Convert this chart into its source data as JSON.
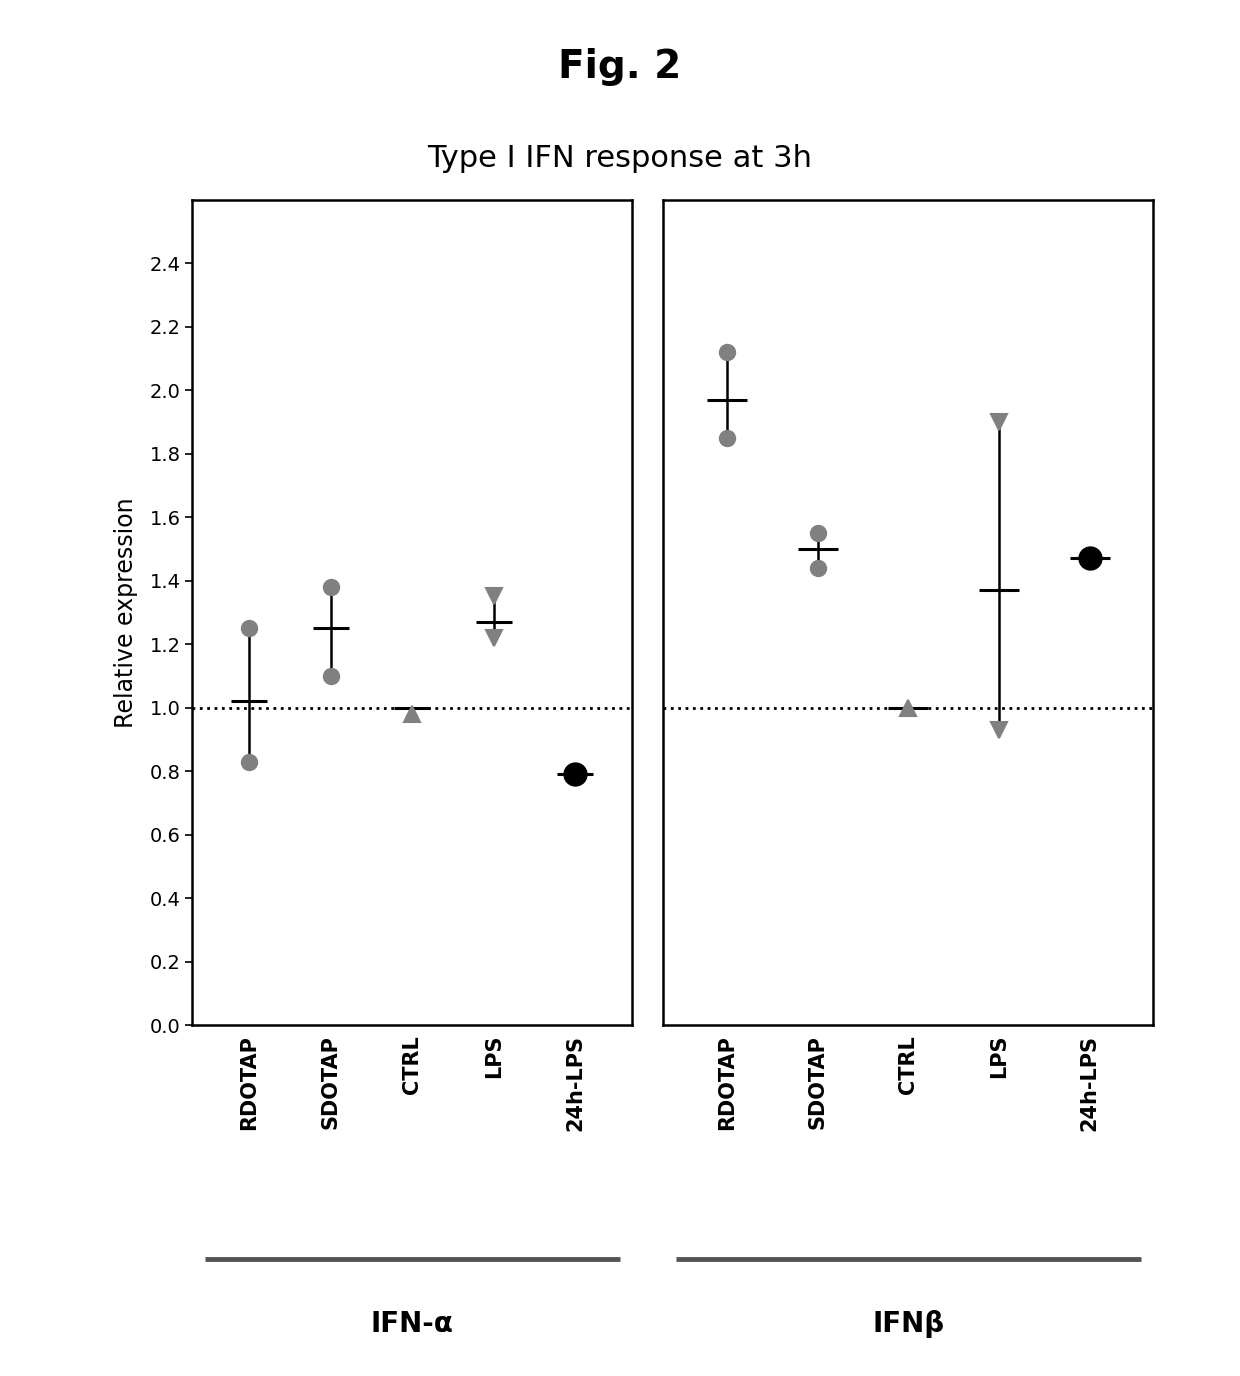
{
  "title": "Type I IFN response at 3h",
  "fig_title": "Fig. 2",
  "ylabel": "Relative expression",
  "xlabel_groups": [
    "IFN-α",
    "IFNβ"
  ],
  "categories": [
    "RDOTAP",
    "SDOTAP",
    "CTRL",
    "LPS",
    "24h-LPS"
  ],
  "ylim": [
    0.0,
    2.6
  ],
  "yticks": [
    0.0,
    0.2,
    0.4,
    0.6,
    0.8,
    1.0,
    1.2,
    1.4,
    1.6,
    1.8,
    2.0,
    2.2,
    2.4
  ],
  "dotted_line_y": 1.0,
  "ifna": {
    "RDOTAP": {
      "mean": 1.02,
      "points": [
        0.83,
        1.25
      ],
      "marker": "o",
      "color": "#808080"
    },
    "SDOTAP": {
      "mean": 1.25,
      "points": [
        1.1,
        1.38
      ],
      "marker": "o",
      "color": "#808080"
    },
    "CTRL": {
      "mean": 1.0,
      "points": [
        0.98
      ],
      "marker": "^",
      "color": "#808080"
    },
    "LPS": {
      "mean": 1.27,
      "points": [
        1.35,
        1.22
      ],
      "marker": "v",
      "color": "#808080"
    },
    "24h-LPS": {
      "mean": 0.79,
      "points": [
        0.79
      ],
      "marker": "o",
      "color": "#000000",
      "big": true
    }
  },
  "ifnb": {
    "RDOTAP": {
      "mean": 1.97,
      "points": [
        1.85,
        2.12
      ],
      "marker": "o",
      "color": "#808080"
    },
    "SDOTAP": {
      "mean": 1.5,
      "points": [
        1.44,
        1.55
      ],
      "marker": "o",
      "color": "#808080"
    },
    "CTRL": {
      "mean": 1.0,
      "points": [
        1.0
      ],
      "marker": "^",
      "color": "#808080"
    },
    "LPS": {
      "mean": 1.37,
      "points": [
        1.9,
        0.93
      ],
      "marker": "v",
      "color": "#808080"
    },
    "24h-LPS": {
      "mean": 1.47,
      "points": [
        1.47
      ],
      "marker": "o",
      "color": "#000000",
      "big": true
    }
  },
  "background_color": "#ffffff"
}
